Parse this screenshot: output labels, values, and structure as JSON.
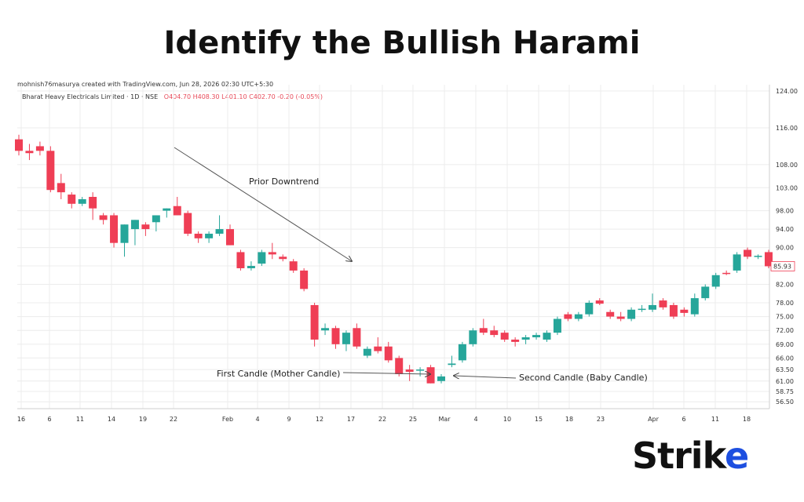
{
  "page": {
    "title": "Identify the Bullish Harami"
  },
  "header": {
    "credit": "mohnish76masurya created with TradingView.com, Jun 28, 2026 02:30 UTC+5:30",
    "symbol": "Bharat Heavy Electricals Limited · 1D · NSE",
    "ohlc": "O404.70  H408.30  L401.10  C402.70  -0.20 (-0.05%)"
  },
  "colors": {
    "up": "#26a69a",
    "down": "#ef3e55",
    "grid": "#ececec",
    "arrow": "#555555"
  },
  "chart_data": {
    "type": "candlestick",
    "title": "Identify the Bullish Harami",
    "ylim": [
      55,
      124
    ],
    "y_ticks": [
      "124.00",
      "116.00",
      "108.00",
      "103.00",
      "98.00",
      "94.00",
      "90.00",
      "86.00",
      "82.00",
      "78.00",
      "75.00",
      "72.00",
      "69.00",
      "66.00",
      "63.50",
      "61.00",
      "58.75",
      "56.50"
    ],
    "x_ticks": [
      "16",
      "6",
      "11",
      "14",
      "19",
      "22",
      "Feb",
      "4",
      "9",
      "12",
      "17",
      "22",
      "25",
      "Mar",
      "4",
      "10",
      "15",
      "18",
      "23",
      "Apr",
      "6",
      "11",
      "18"
    ],
    "last_price_label": "85.93",
    "candles": [
      {
        "o": 113.5,
        "h": 114.5,
        "l": 110.0,
        "c": 111.0
      },
      {
        "o": 111.0,
        "h": 112.5,
        "l": 109.0,
        "c": 110.5
      },
      {
        "o": 112.0,
        "h": 113.0,
        "l": 110.0,
        "c": 111.0
      },
      {
        "o": 111.0,
        "h": 112.0,
        "l": 102.0,
        "c": 102.5
      },
      {
        "o": 104.0,
        "h": 106.0,
        "l": 100.5,
        "c": 102.0
      },
      {
        "o": 101.5,
        "h": 102.0,
        "l": 98.5,
        "c": 99.5
      },
      {
        "o": 99.5,
        "h": 101.0,
        "l": 99.0,
        "c": 100.5
      },
      {
        "o": 101.0,
        "h": 102.0,
        "l": 96.0,
        "c": 98.5
      },
      {
        "o": 97.0,
        "h": 97.5,
        "l": 95.0,
        "c": 96.0
      },
      {
        "o": 97.0,
        "h": 97.5,
        "l": 90.0,
        "c": 91.0
      },
      {
        "o": 91.0,
        "h": 95.0,
        "l": 88.0,
        "c": 95.0
      },
      {
        "o": 94.0,
        "h": 96.0,
        "l": 90.5,
        "c": 96.0
      },
      {
        "o": 95.0,
        "h": 95.5,
        "l": 92.5,
        "c": 94.0
      },
      {
        "o": 95.5,
        "h": 97.0,
        "l": 93.5,
        "c": 97.0
      },
      {
        "o": 98.0,
        "h": 98.5,
        "l": 96.5,
        "c": 98.5
      },
      {
        "o": 99.0,
        "h": 101.0,
        "l": 97.0,
        "c": 97.0
      },
      {
        "o": 97.5,
        "h": 98.0,
        "l": 92.5,
        "c": 93.0
      },
      {
        "o": 93.0,
        "h": 93.5,
        "l": 91.0,
        "c": 92.0
      },
      {
        "o": 92.0,
        "h": 93.5,
        "l": 91.0,
        "c": 93.0
      },
      {
        "o": 93.0,
        "h": 97.0,
        "l": 92.5,
        "c": 94.0
      },
      {
        "o": 94.0,
        "h": 95.0,
        "l": 90.5,
        "c": 90.5
      },
      {
        "o": 89.0,
        "h": 89.5,
        "l": 85.0,
        "c": 85.5
      },
      {
        "o": 85.5,
        "h": 87.0,
        "l": 85.0,
        "c": 86.0
      },
      {
        "o": 86.5,
        "h": 89.5,
        "l": 86.0,
        "c": 89.0
      },
      {
        "o": 89.0,
        "h": 91.0,
        "l": 87.5,
        "c": 88.5
      },
      {
        "o": 88.0,
        "h": 88.5,
        "l": 87.0,
        "c": 87.5
      },
      {
        "o": 87.0,
        "h": 87.5,
        "l": 84.5,
        "c": 85.0
      },
      {
        "o": 85.0,
        "h": 85.5,
        "l": 80.5,
        "c": 81.0
      },
      {
        "o": 77.5,
        "h": 78.0,
        "l": 68.5,
        "c": 70.0
      },
      {
        "o": 72.0,
        "h": 73.5,
        "l": 71.0,
        "c": 72.5
      },
      {
        "o": 72.5,
        "h": 73.0,
        "l": 68.0,
        "c": 69.0
      },
      {
        "o": 69.0,
        "h": 72.0,
        "l": 67.5,
        "c": 71.5
      },
      {
        "o": 72.5,
        "h": 73.5,
        "l": 68.0,
        "c": 68.5
      },
      {
        "o": 66.5,
        "h": 68.5,
        "l": 66.0,
        "c": 68.0
      },
      {
        "o": 68.5,
        "h": 70.5,
        "l": 67.0,
        "c": 67.5
      },
      {
        "o": 68.5,
        "h": 69.5,
        "l": 65.0,
        "c": 65.5
      },
      {
        "o": 66.0,
        "h": 66.5,
        "l": 62.0,
        "c": 62.5
      },
      {
        "o": 63.5,
        "h": 64.5,
        "l": 61.0,
        "c": 63.0
      },
      {
        "o": 63.5,
        "h": 64.0,
        "l": 62.0,
        "c": 63.5
      },
      {
        "o": 64.0,
        "h": 64.5,
        "l": 60.5,
        "c": 60.5
      },
      {
        "o": 61.0,
        "h": 62.5,
        "l": 60.5,
        "c": 62.0
      },
      {
        "o": 64.5,
        "h": 66.5,
        "l": 64.0,
        "c": 64.8
      },
      {
        "o": 65.5,
        "h": 69.5,
        "l": 65.0,
        "c": 69.0
      },
      {
        "o": 69.0,
        "h": 72.5,
        "l": 68.5,
        "c": 72.0
      },
      {
        "o": 72.5,
        "h": 74.5,
        "l": 71.0,
        "c": 71.5
      },
      {
        "o": 72.0,
        "h": 73.0,
        "l": 70.5,
        "c": 71.0
      },
      {
        "o": 71.5,
        "h": 72.0,
        "l": 69.5,
        "c": 70.0
      },
      {
        "o": 70.0,
        "h": 70.5,
        "l": 68.5,
        "c": 69.5
      },
      {
        "o": 70.0,
        "h": 71.0,
        "l": 69.0,
        "c": 70.5
      },
      {
        "o": 70.5,
        "h": 71.5,
        "l": 70.0,
        "c": 71.0
      },
      {
        "o": 70.0,
        "h": 72.0,
        "l": 69.5,
        "c": 71.5
      },
      {
        "o": 71.5,
        "h": 75.0,
        "l": 71.0,
        "c": 74.5
      },
      {
        "o": 75.5,
        "h": 76.0,
        "l": 74.0,
        "c": 74.5
      },
      {
        "o": 74.5,
        "h": 76.0,
        "l": 74.0,
        "c": 75.5
      },
      {
        "o": 75.5,
        "h": 78.5,
        "l": 75.0,
        "c": 78.0
      },
      {
        "o": 78.5,
        "h": 79.0,
        "l": 77.5,
        "c": 77.8
      },
      {
        "o": 76.0,
        "h": 76.5,
        "l": 74.5,
        "c": 75.0
      },
      {
        "o": 75.0,
        "h": 76.0,
        "l": 74.0,
        "c": 74.5
      },
      {
        "o": 74.5,
        "h": 77.0,
        "l": 74.0,
        "c": 76.5
      },
      {
        "o": 76.5,
        "h": 77.5,
        "l": 76.0,
        "c": 76.7
      },
      {
        "o": 76.5,
        "h": 80.0,
        "l": 76.0,
        "c": 77.5
      },
      {
        "o": 78.5,
        "h": 79.0,
        "l": 76.5,
        "c": 77.0
      },
      {
        "o": 77.5,
        "h": 78.0,
        "l": 74.5,
        "c": 75.0
      },
      {
        "o": 76.5,
        "h": 77.0,
        "l": 75.0,
        "c": 75.8
      },
      {
        "o": 75.5,
        "h": 80.0,
        "l": 75.0,
        "c": 79.0
      },
      {
        "o": 79.0,
        "h": 82.0,
        "l": 78.5,
        "c": 81.5
      },
      {
        "o": 81.5,
        "h": 84.5,
        "l": 81.0,
        "c": 84.0
      },
      {
        "o": 84.5,
        "h": 85.0,
        "l": 84.0,
        "c": 84.3
      },
      {
        "o": 85.0,
        "h": 89.0,
        "l": 84.5,
        "c": 88.5
      },
      {
        "o": 89.5,
        "h": 90.0,
        "l": 87.5,
        "c": 88.0
      },
      {
        "o": 88.0,
        "h": 88.5,
        "l": 87.5,
        "c": 88.2
      },
      {
        "o": 89.0,
        "h": 89.5,
        "l": 85.5,
        "c": 85.93
      }
    ],
    "annotations": [
      {
        "text": "Prior Downtrend"
      },
      {
        "text": "First Candle (Mother Candle)"
      },
      {
        "text": "Second Candle (Baby Candle)"
      }
    ]
  },
  "logo": {
    "text_main": "Stri",
    "text_k": "k",
    "text_e": "e"
  }
}
